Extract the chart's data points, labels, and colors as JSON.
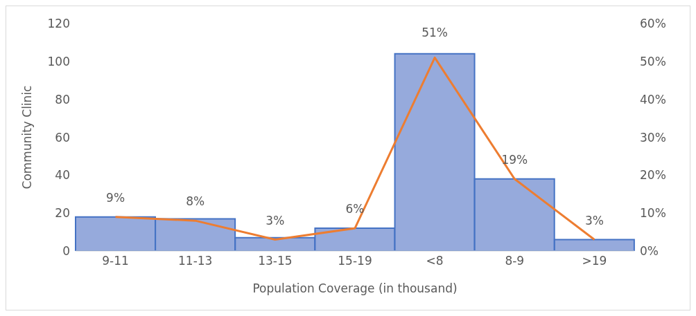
{
  "chart_data": {
    "type": "bar",
    "xlabel": "Population Coverage (in thousand)",
    "ylabel": "Community Clinic",
    "categories": [
      "9-11",
      "11-13",
      "13-15",
      "15-19",
      "<8",
      "8-9",
      ">19"
    ],
    "series": [
      {
        "color": "#96aadc",
        "values": [
          18,
          17,
          7,
          12,
          104,
          38,
          6
        ]
      },
      {
        "type": "line",
        "axis": "y2",
        "color": "#ed7d31",
        "values": [
          9,
          8,
          3,
          6,
          51,
          19,
          3
        ],
        "value_labels": [
          "9%",
          "8%",
          "3%",
          "6%",
          "51%",
          "19%",
          "3%"
        ]
      }
    ],
    "ylim": [
      0,
      120
    ],
    "yticks": [
      0,
      20,
      40,
      60,
      80,
      100,
      120
    ],
    "y2lim": [
      0,
      60
    ],
    "y2ticks": [
      {
        "value": 0,
        "label": "0%"
      },
      {
        "value": 10,
        "label": "10%"
      },
      {
        "value": 20,
        "label": "20%"
      },
      {
        "value": 30,
        "label": "30%"
      },
      {
        "value": 40,
        "label": "40%"
      },
      {
        "value": 50,
        "label": "50%"
      },
      {
        "value": 60,
        "label": "60%"
      }
    ],
    "marker": "none",
    "legend": false,
    "grid": false
  }
}
